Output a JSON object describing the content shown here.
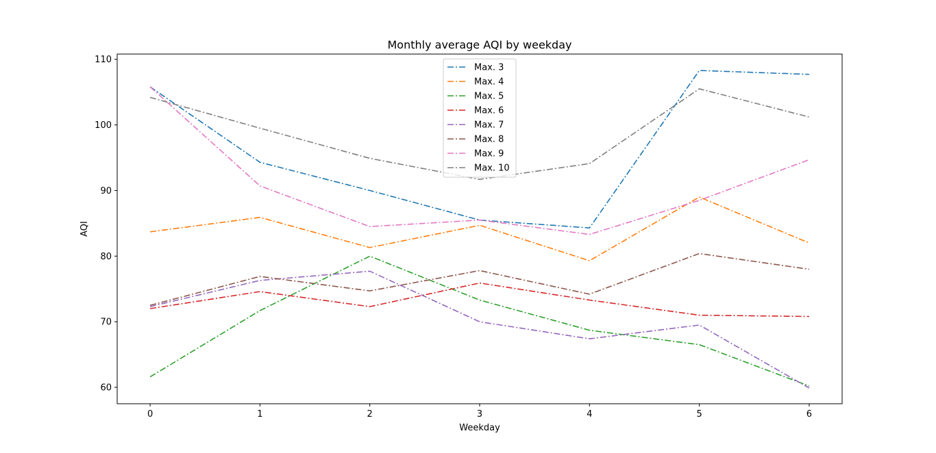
{
  "chart_data": {
    "type": "line",
    "title": "Monthly average AQI by weekday",
    "xlabel": "Weekday",
    "ylabel": "AQI",
    "x": [
      0,
      1,
      2,
      3,
      4,
      5,
      6
    ],
    "xticks": [
      "0",
      "1",
      "2",
      "3",
      "4",
      "5",
      "6"
    ],
    "yticks": [
      "60",
      "70",
      "80",
      "90",
      "100",
      "110"
    ],
    "xlim": [
      -0.3,
      6.3
    ],
    "ylim": [
      57.5,
      110.8
    ],
    "grid": false,
    "legend_position": "upper center",
    "line_style": "dash-dot",
    "series": [
      {
        "name": "Max. 3",
        "color": "#1f77b4",
        "values": [
          105.8,
          94.3,
          90.0,
          85.5,
          84.3,
          108.3,
          107.7
        ]
      },
      {
        "name": "Max. 4",
        "color": "#ff7f0e",
        "values": [
          83.7,
          85.9,
          81.3,
          84.7,
          79.3,
          89.0,
          82.0
        ]
      },
      {
        "name": "Max. 5",
        "color": "#2ca02c",
        "values": [
          61.6,
          71.7,
          80.0,
          73.3,
          68.7,
          66.5,
          60.2
        ]
      },
      {
        "name": "Max. 6",
        "color": "#d62728",
        "values": [
          72.0,
          74.6,
          72.3,
          75.9,
          73.3,
          71.0,
          70.8
        ]
      },
      {
        "name": "Max. 7",
        "color": "#9467bd",
        "values": [
          72.3,
          76.3,
          77.7,
          70.0,
          67.4,
          69.5,
          59.9
        ]
      },
      {
        "name": "Max. 8",
        "color": "#8c564b",
        "values": [
          72.5,
          76.9,
          74.7,
          77.8,
          74.2,
          80.4,
          78.0
        ]
      },
      {
        "name": "Max. 9",
        "color": "#e377c2",
        "values": [
          105.8,
          90.7,
          84.5,
          85.5,
          83.3,
          88.5,
          94.7
        ]
      },
      {
        "name": "Max. 10",
        "color": "#7f7f7f",
        "values": [
          104.2,
          99.5,
          94.9,
          91.7,
          94.1,
          105.5,
          101.2
        ]
      }
    ]
  }
}
